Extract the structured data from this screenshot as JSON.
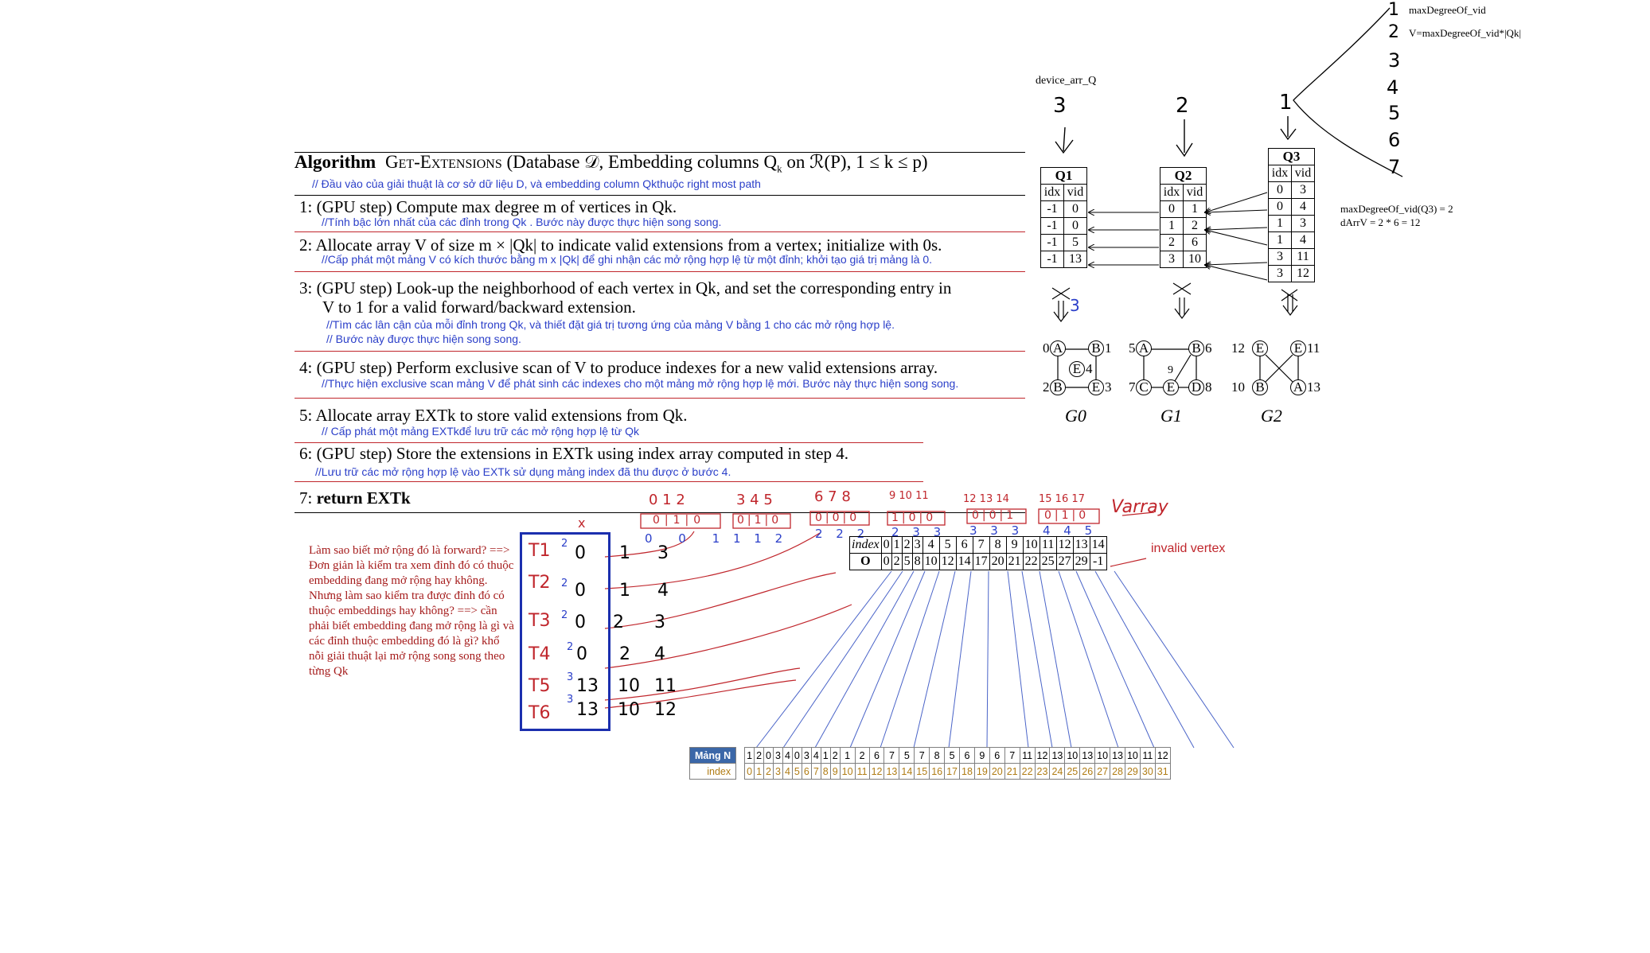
{
  "algorithm": {
    "title_bold": "Algorithm",
    "title_name": "Get-Extensions",
    "title_args": "(Database 𝒟, Embedding columns Q",
    "title_args_sub": "k",
    "title_args_tail": " on ℛ(P), 1 ≤ k ≤ p)",
    "input_note": "// Đầu vào của giải thuật là cơ sở dữ liệu D, và embedding column Qkthuộc right most path",
    "steps": [
      {
        "num": "1:",
        "text": "(GPU step) Compute max degree m of vertices in Qk.",
        "note": "//Tính bậc lớn nhất của các đỉnh trong Qk . Bước này được thực hiện song song."
      },
      {
        "num": "2:",
        "text": "Allocate array V of size m × |Qk| to indicate valid extensions from a vertex; initialize with 0s.",
        "note": "//Cấp phát một mảng V có kích thước bằng m x |Qk| để ghi nhận các mở rộng hợp lệ từ một đỉnh; khởi tạo giá trị mảng là 0."
      },
      {
        "num": "3:",
        "text": "(GPU step) Look-up the neighborhood of each vertex in Qk, and set the corresponding entry in",
        "text2": "V to 1 for a valid forward/backward extension.",
        "note": "//Tìm các lân cận của mỗi đỉnh trong Qk, và thiết đặt giá trị tương ứng của mảng V bằng 1 cho các mở rộng hợp lệ.",
        "note2": "// Bước này được thực hiện song song."
      },
      {
        "num": "4:",
        "text": "(GPU step) Perform exclusive scan of V to produce indexes for a new valid extensions array.",
        "note": "//Thực hiện exclusive scan mảng V để phát sinh các indexes cho một mảng mở rộng hợp lệ mới. Bước này thực hiện song song."
      },
      {
        "num": "5:",
        "text": "Allocate array EXTk to store valid extensions from Qk.",
        "note": "// Cấp phát một mảng EXTkđể lưu trữ các mở rộng hợp lệ từ Qk"
      },
      {
        "num": "6:",
        "text": "(GPU step) Store the extensions in EXTk using index array computed in step 4.",
        "note": "//Lưu trữ các mở rộng hợp lệ vào EXTk sử dụng mảng index đã thu được ở bước 4."
      },
      {
        "num": "7:",
        "text": "return  EXTk"
      }
    ]
  },
  "device": {
    "label": "device_arr_Q",
    "q_numbers": [
      "3",
      "2",
      "1"
    ],
    "q1": {
      "title": "Q1",
      "cols": [
        "idx",
        "vid"
      ],
      "rows": [
        [
          "-1",
          "0"
        ],
        [
          "-1",
          "0"
        ],
        [
          "-1",
          "5"
        ],
        [
          "-1",
          "13"
        ]
      ]
    },
    "q2": {
      "title": "Q2",
      "cols": [
        "idx",
        "vid"
      ],
      "rows": [
        [
          "0",
          "1"
        ],
        [
          "1",
          "2"
        ],
        [
          "2",
          "6"
        ],
        [
          "3",
          "10"
        ]
      ]
    },
    "q3": {
      "title": "Q3",
      "cols": [
        "idx",
        "vid"
      ],
      "rows": [
        [
          "0",
          "3"
        ],
        [
          "0",
          "4"
        ],
        [
          "1",
          "3"
        ],
        [
          "1",
          "4"
        ],
        [
          "3",
          "11"
        ],
        [
          "3",
          "12"
        ]
      ]
    },
    "q1_annot": "3"
  },
  "right_notes": {
    "list": [
      "1",
      "2",
      "3",
      "4",
      "5",
      "6",
      "7"
    ],
    "item1": "maxDegreeOf_vid",
    "item2": "V=maxDegreeOf_vid*|Qk|",
    "calc1": "maxDegreeOf_vid(Q3) = 2",
    "calc2": "dArrV = 2 * 6 = 12"
  },
  "graphs": {
    "g0": {
      "label": "G0",
      "nodes": {
        "a": "A",
        "b": "B",
        "e": "E",
        "bb": "B",
        "ee": "E"
      },
      "nums": [
        "0",
        "1",
        "4",
        "2",
        "3"
      ]
    },
    "g1": {
      "label": "G1",
      "nodes": {
        "a": "A",
        "b": "B",
        "c": "C",
        "e": "E",
        "d": "D"
      },
      "nums": [
        "5",
        "6",
        "9",
        "7",
        "8"
      ]
    },
    "g2": {
      "label": "G2",
      "nodes": {
        "e1": "E",
        "e2": "E",
        "b": "B",
        "a": "A"
      },
      "nums": [
        "12",
        "11",
        "10",
        "13"
      ]
    }
  },
  "v_array": {
    "top_indices": [
      "0 1 2",
      "3 4 5",
      "6 7 8",
      "9 10 11",
      "12 13 14",
      "15 16 17"
    ],
    "groups": [
      "0|1|0",
      "0|1|0",
      "0|0|0",
      "1|0|0",
      "0|0|1",
      "0|1|0"
    ],
    "under": [
      "0 0 1",
      "1 1 2",
      "2 2 2",
      "2 3 3",
      "3 3 3",
      "4 4 5"
    ],
    "label": "Varray",
    "x_mark": "x"
  },
  "o_table": {
    "index_label": "index",
    "o_label": "O",
    "index": [
      "0",
      "1",
      "2",
      "3",
      "4",
      "5",
      "6",
      "7",
      "8",
      "9",
      "10",
      "11",
      "12",
      "13",
      "14"
    ],
    "values": [
      "0",
      "2",
      "5",
      "8",
      "10",
      "12",
      "14",
      "17",
      "20",
      "21",
      "22",
      "25",
      "27",
      "29",
      "-1"
    ],
    "invalid_note": "invalid vertex"
  },
  "red_note": "Làm sao biết mở rộng đó là forward? ==> Đơn giản là kiểm tra xem đỉnh đó có thuộc embedding đang mở rộng hay không. Nhưng làm sao kiểm tra được đỉnh đó có thuộc embeddings hay không? ==> cần phải biết embedding đang mở rộng là gì và các đỉnh thuộc embedding đó là gì? khổ nỗi giải thuật lại mở rộng song song theo từng Qk",
  "t_rows": [
    {
      "t": "T1",
      "deg": "2",
      "v": "0",
      "n1": "1",
      "n2": "3"
    },
    {
      "t": "T2",
      "deg": "2",
      "v": "0",
      "n1": "1",
      "n2": "4"
    },
    {
      "t": "T3",
      "deg": "2",
      "v": "0",
      "n1": "2",
      "n2": "3"
    },
    {
      "t": "T4",
      "deg": "2",
      "v": "0",
      "n1": "2",
      "n2": "4"
    },
    {
      "t": "T5",
      "deg": "3",
      "v": "13",
      "n1": "10",
      "n2": "11"
    },
    {
      "t": "T6",
      "deg": "3",
      "v": "13",
      "n1": "10",
      "n2": "12"
    }
  ],
  "mang_n": {
    "label": "Mảng N",
    "index_label": "index",
    "values": [
      "1",
      "2",
      "0",
      "3",
      "4",
      "0",
      "3",
      "4",
      "1",
      "2",
      "1",
      "2",
      "6",
      "7",
      "5",
      "7",
      "8",
      "5",
      "6",
      "9",
      "6",
      "7",
      "11",
      "12",
      "13",
      "10",
      "13",
      "10",
      "13",
      "10",
      "11",
      "12"
    ],
    "index": [
      "0",
      "1",
      "2",
      "3",
      "4",
      "5",
      "6",
      "7",
      "8",
      "9",
      "10",
      "11",
      "12",
      "13",
      "14",
      "15",
      "16",
      "17",
      "18",
      "19",
      "20",
      "21",
      "22",
      "23",
      "24",
      "25",
      "26",
      "27",
      "28",
      "29",
      "30",
      "31"
    ]
  },
  "colors": {
    "blue": "#2b3fc9",
    "red": "#c0262c",
    "dark_red": "#a51c1c",
    "header_blue": "#3b67a8"
  }
}
